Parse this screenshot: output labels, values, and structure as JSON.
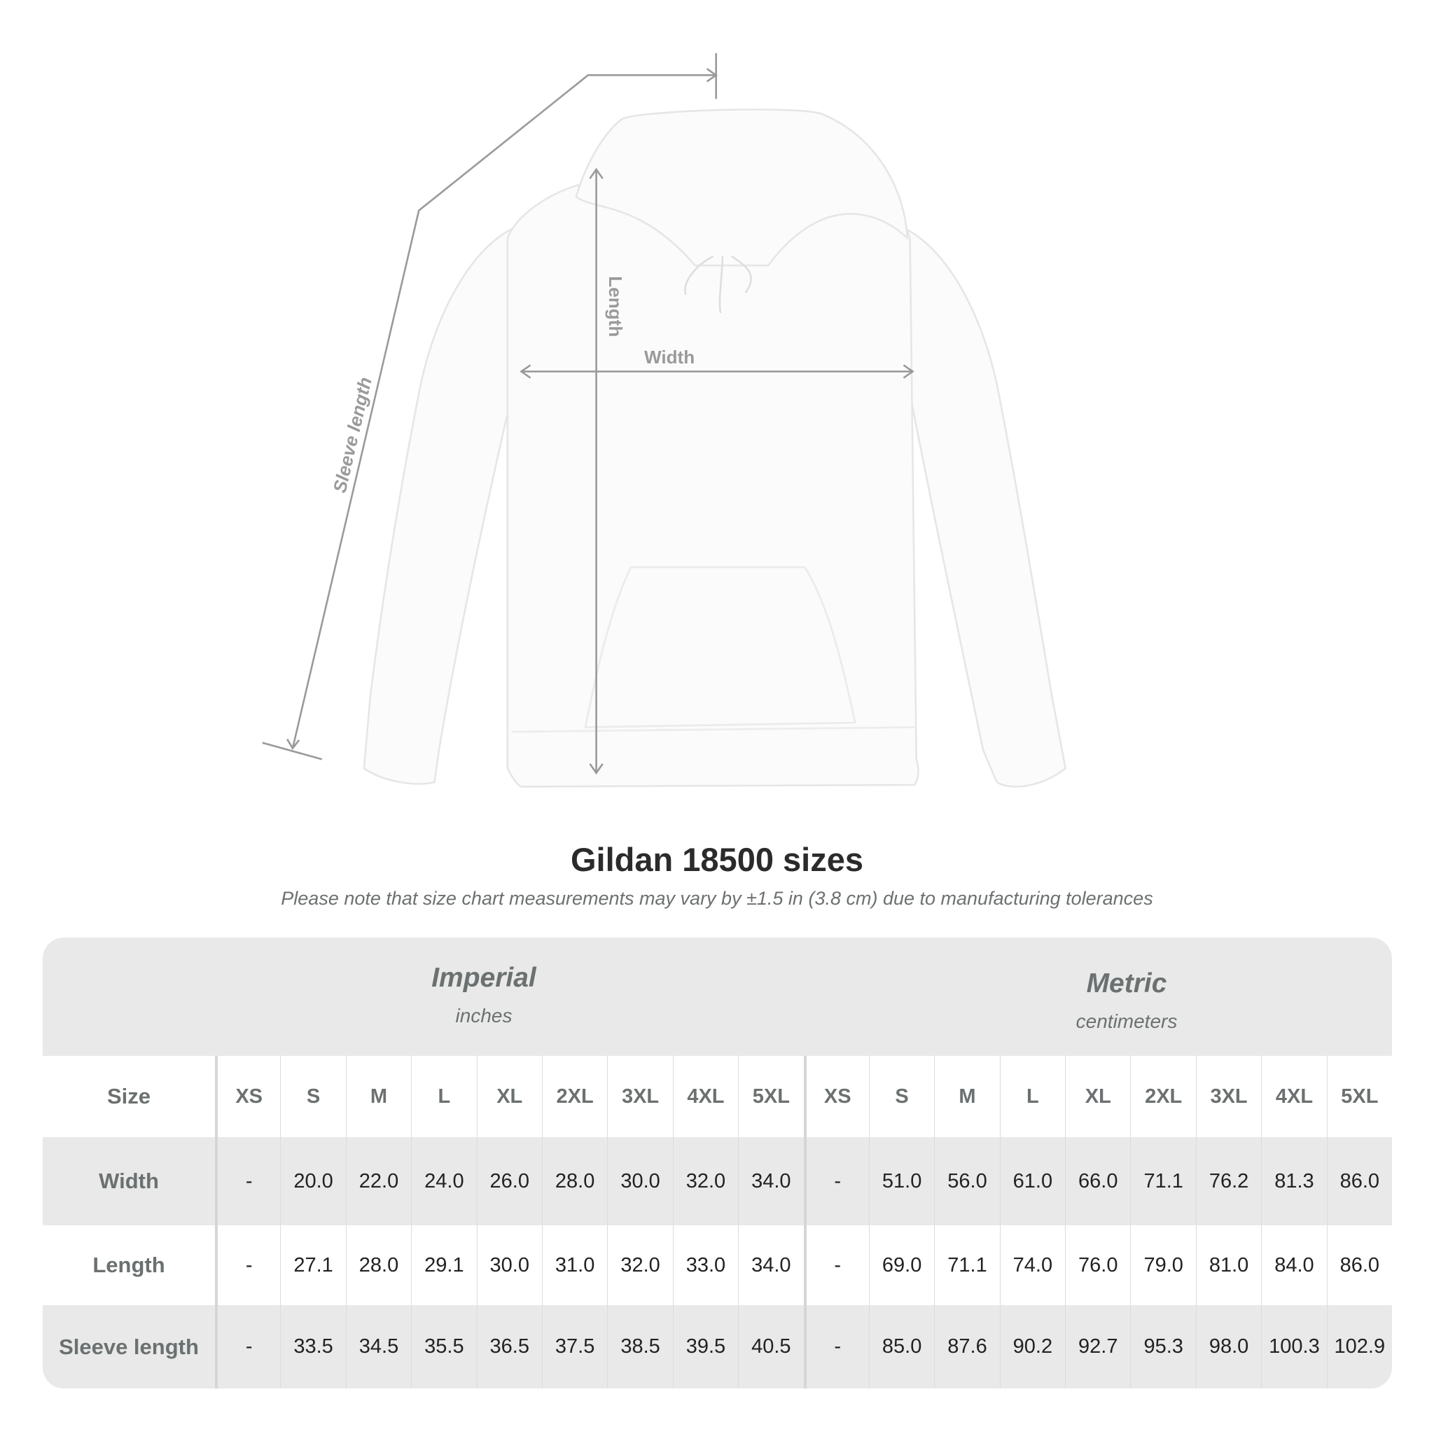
{
  "illustration": {
    "labels": {
      "sleeve": "Sleeve length",
      "length": "Length",
      "width": "Width"
    },
    "garment_color": "#fbfbfb",
    "line_color": "#9a9a9a"
  },
  "title": "Gildan 18500 sizes",
  "note": "Please note that size chart measurements may vary by ±1.5 in (3.8 cm) due to manufacturing tolerances",
  "table": {
    "imperial": {
      "name": "Imperial",
      "unit": "inches"
    },
    "metric": {
      "name": "Metric",
      "unit": "centimeters"
    },
    "size_label": "Size",
    "sizes": [
      "XS",
      "S",
      "M",
      "L",
      "XL",
      "2XL",
      "3XL",
      "4XL",
      "5XL"
    ],
    "rows": [
      {
        "label": "Width",
        "imperial": [
          "-",
          "20.0",
          "22.0",
          "24.0",
          "26.0",
          "28.0",
          "30.0",
          "32.0",
          "34.0"
        ],
        "metric": [
          "-",
          "51.0",
          "56.0",
          "61.0",
          "66.0",
          "71.1",
          "76.2",
          "81.3",
          "86.0"
        ]
      },
      {
        "label": "Length",
        "imperial": [
          "-",
          "27.1",
          "28.0",
          "29.1",
          "30.0",
          "31.0",
          "32.0",
          "33.0",
          "34.0"
        ],
        "metric": [
          "-",
          "69.0",
          "71.1",
          "74.0",
          "76.0",
          "79.0",
          "81.0",
          "84.0",
          "86.0"
        ]
      },
      {
        "label": "Sleeve length",
        "imperial": [
          "-",
          "33.5",
          "34.5",
          "35.5",
          "36.5",
          "37.5",
          "38.5",
          "39.5",
          "40.5"
        ],
        "metric": [
          "-",
          "85.0",
          "87.6",
          "90.2",
          "92.7",
          "95.3",
          "98.0",
          "100.3",
          "102.9"
        ]
      }
    ]
  }
}
